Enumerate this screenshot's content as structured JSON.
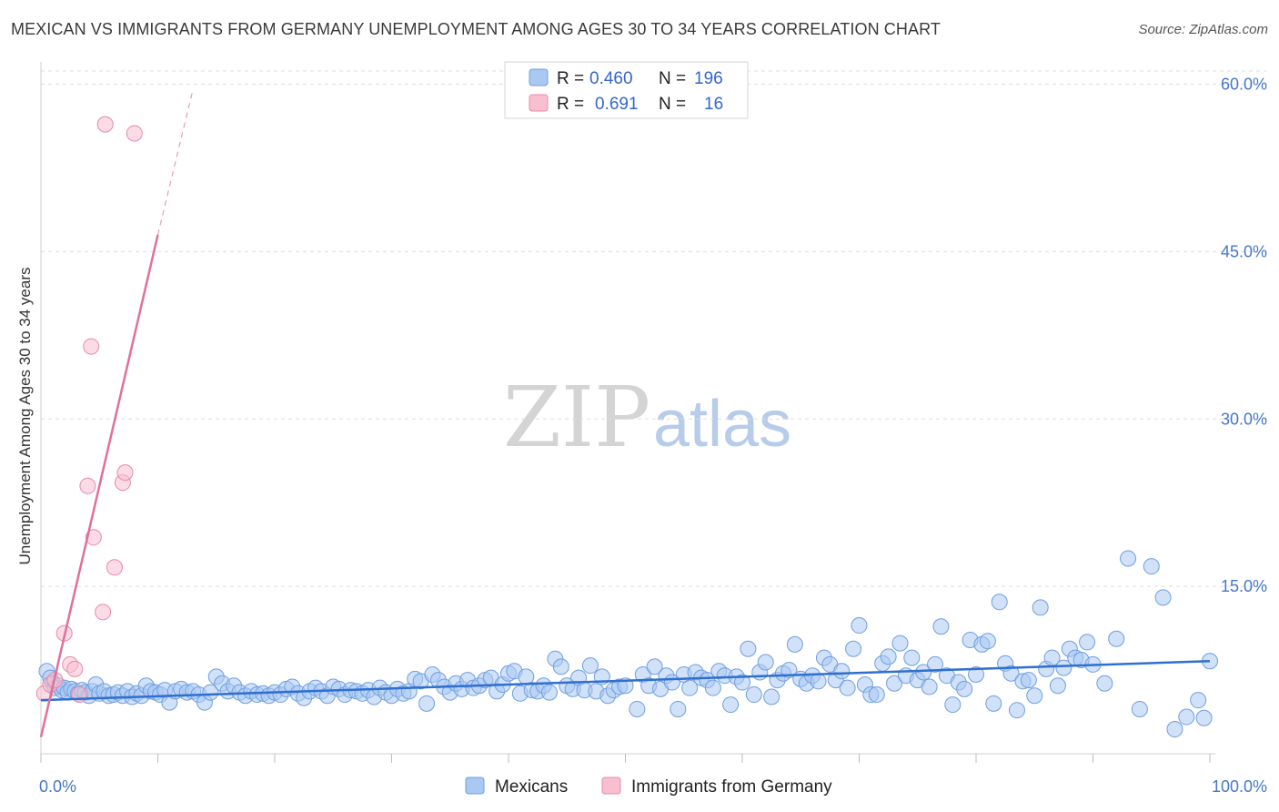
{
  "title": "MEXICAN VS IMMIGRANTS FROM GERMANY UNEMPLOYMENT AMONG AGES 30 TO 34 YEARS CORRELATION CHART",
  "source": "Source: ZipAtlas.com",
  "watermark": {
    "zip": "ZIP",
    "atlas": "atlas"
  },
  "legend": {
    "r_label": "R =",
    "n_label": "N =",
    "rows": [
      {
        "series": "Mexicans",
        "r": "0.460",
        "n": "196",
        "color": "#a9c8f2",
        "stroke": "#6f9fe0"
      },
      {
        "series": "Immigrants from Germany",
        "r": "0.691",
        "n": "16",
        "color": "#f8bfd1",
        "stroke": "#e889a8"
      }
    ]
  },
  "bottom_legend": [
    "Mexicans",
    "Immigrants from Germany"
  ],
  "chart_data": {
    "type": "scatter",
    "title": "MEXICAN VS IMMIGRANTS FROM GERMANY UNEMPLOYMENT AMONG AGES 30 TO 34 YEARS CORRELATION CHART",
    "xlabel": "",
    "ylabel": "Unemployment Among Ages 30 to 34 years",
    "xlim": [
      0,
      100
    ],
    "ylim": [
      0,
      62
    ],
    "x_tick_labels": [
      "0.0%",
      "100.0%"
    ],
    "y_ticks": [
      15,
      30,
      45,
      60
    ],
    "y_tick_labels": [
      "15.0%",
      "30.0%",
      "45.0%",
      "60.0%"
    ],
    "grid": true,
    "series": [
      {
        "name": "Mexicans",
        "color": "#a9c8f2",
        "stroke": "#6f9fe0",
        "trend": {
          "x0": 0,
          "y0": 4.8,
          "x1": 100,
          "y1": 8.3,
          "color": "#2f6fd0"
        },
        "points": [
          [
            0.5,
            7.4
          ],
          [
            0.8,
            6.8
          ],
          [
            1.0,
            6.3
          ],
          [
            1.2,
            5.9
          ],
          [
            1.5,
            6.1
          ],
          [
            1.8,
            5.7
          ],
          [
            2.0,
            5.9
          ],
          [
            2.3,
            5.5
          ],
          [
            2.6,
            5.8
          ],
          [
            2.9,
            5.6
          ],
          [
            3.2,
            5.4
          ],
          [
            3.5,
            5.7
          ],
          [
            3.8,
            5.5
          ],
          [
            4.1,
            5.2
          ],
          [
            4.4,
            5.6
          ],
          [
            4.7,
            6.2
          ],
          [
            5.0,
            5.4
          ],
          [
            5.4,
            5.6
          ],
          [
            5.8,
            5.2
          ],
          [
            6.2,
            5.3
          ],
          [
            6.6,
            5.5
          ],
          [
            7.0,
            5.2
          ],
          [
            7.4,
            5.6
          ],
          [
            7.8,
            5.1
          ],
          [
            8.2,
            5.4
          ],
          [
            8.6,
            5.2
          ],
          [
            9.0,
            6.1
          ],
          [
            9.4,
            5.6
          ],
          [
            9.8,
            5.5
          ],
          [
            10.2,
            5.3
          ],
          [
            10.6,
            5.7
          ],
          [
            11.0,
            4.6
          ],
          [
            11.5,
            5.6
          ],
          [
            12.0,
            5.8
          ],
          [
            12.5,
            5.5
          ],
          [
            13.0,
            5.6
          ],
          [
            13.5,
            5.3
          ],
          [
            14.0,
            4.6
          ],
          [
            14.5,
            5.5
          ],
          [
            15.0,
            6.9
          ],
          [
            15.5,
            6.3
          ],
          [
            16.0,
            5.6
          ],
          [
            16.5,
            6.1
          ],
          [
            17.0,
            5.5
          ],
          [
            17.5,
            5.2
          ],
          [
            18.0,
            5.6
          ],
          [
            18.5,
            5.3
          ],
          [
            19.0,
            5.4
          ],
          [
            19.5,
            5.2
          ],
          [
            20.0,
            5.5
          ],
          [
            20.5,
            5.3
          ],
          [
            21.0,
            5.8
          ],
          [
            21.5,
            6.0
          ],
          [
            22.0,
            5.4
          ],
          [
            22.5,
            5.0
          ],
          [
            23.0,
            5.6
          ],
          [
            23.5,
            5.9
          ],
          [
            24.0,
            5.6
          ],
          [
            24.5,
            5.2
          ],
          [
            25.0,
            6.0
          ],
          [
            25.5,
            5.8
          ],
          [
            26.0,
            5.3
          ],
          [
            26.5,
            5.7
          ],
          [
            27.0,
            5.6
          ],
          [
            27.5,
            5.4
          ],
          [
            28.0,
            5.7
          ],
          [
            28.5,
            5.1
          ],
          [
            29.0,
            5.9
          ],
          [
            29.5,
            5.5
          ],
          [
            30.0,
            5.2
          ],
          [
            30.5,
            5.8
          ],
          [
            31.0,
            5.4
          ],
          [
            31.5,
            5.6
          ],
          [
            32.0,
            6.7
          ],
          [
            32.5,
            6.5
          ],
          [
            33.0,
            4.5
          ],
          [
            33.5,
            7.1
          ],
          [
            34.0,
            6.6
          ],
          [
            34.5,
            6.0
          ],
          [
            35.0,
            5.5
          ],
          [
            35.5,
            6.3
          ],
          [
            36.0,
            5.8
          ],
          [
            36.5,
            6.6
          ],
          [
            37.0,
            5.9
          ],
          [
            37.5,
            6.1
          ],
          [
            38.0,
            6.6
          ],
          [
            38.5,
            6.8
          ],
          [
            39.0,
            5.6
          ],
          [
            39.5,
            6.2
          ],
          [
            40.0,
            7.2
          ],
          [
            40.5,
            7.4
          ],
          [
            41.0,
            5.4
          ],
          [
            41.5,
            6.9
          ],
          [
            42.0,
            5.7
          ],
          [
            42.5,
            5.6
          ],
          [
            43.0,
            6.1
          ],
          [
            43.5,
            5.5
          ],
          [
            44.0,
            8.5
          ],
          [
            44.5,
            7.8
          ],
          [
            45.0,
            6.1
          ],
          [
            45.5,
            5.8
          ],
          [
            46.0,
            6.8
          ],
          [
            46.5,
            5.7
          ],
          [
            47.0,
            7.9
          ],
          [
            47.5,
            5.6
          ],
          [
            48.0,
            6.9
          ],
          [
            48.5,
            5.2
          ],
          [
            49.0,
            5.7
          ],
          [
            49.5,
            6.0
          ],
          [
            50.0,
            6.1
          ],
          [
            51.0,
            4.0
          ],
          [
            51.5,
            7.1
          ],
          [
            52.0,
            6.1
          ],
          [
            52.5,
            7.8
          ],
          [
            53.0,
            5.8
          ],
          [
            53.5,
            7.0
          ],
          [
            54.0,
            6.4
          ],
          [
            54.5,
            4.0
          ],
          [
            55.0,
            7.1
          ],
          [
            55.5,
            5.9
          ],
          [
            56.0,
            7.3
          ],
          [
            56.5,
            6.8
          ],
          [
            57.0,
            6.6
          ],
          [
            57.5,
            5.9
          ],
          [
            58.0,
            7.4
          ],
          [
            58.5,
            7.0
          ],
          [
            59.0,
            4.4
          ],
          [
            59.5,
            6.9
          ],
          [
            60.0,
            6.4
          ],
          [
            60.5,
            9.4
          ],
          [
            61.0,
            5.3
          ],
          [
            61.5,
            7.3
          ],
          [
            62.0,
            8.2
          ],
          [
            62.5,
            5.1
          ],
          [
            63.0,
            6.6
          ],
          [
            63.5,
            7.2
          ],
          [
            64.0,
            7.5
          ],
          [
            64.5,
            9.8
          ],
          [
            65.0,
            6.7
          ],
          [
            65.5,
            6.3
          ],
          [
            66.0,
            7.0
          ],
          [
            66.5,
            6.5
          ],
          [
            67.0,
            8.6
          ],
          [
            67.5,
            8.0
          ],
          [
            68.0,
            6.6
          ],
          [
            68.5,
            7.4
          ],
          [
            69.0,
            5.9
          ],
          [
            69.5,
            9.4
          ],
          [
            70.0,
            11.5
          ],
          [
            70.5,
            6.2
          ],
          [
            71.0,
            5.3
          ],
          [
            71.5,
            5.3
          ],
          [
            72.0,
            8.1
          ],
          [
            72.5,
            8.7
          ],
          [
            73.0,
            6.3
          ],
          [
            73.5,
            9.9
          ],
          [
            74.0,
            7.0
          ],
          [
            74.5,
            8.6
          ],
          [
            75.0,
            6.6
          ],
          [
            75.5,
            7.3
          ],
          [
            76.0,
            6.0
          ],
          [
            76.5,
            8.0
          ],
          [
            77.0,
            11.4
          ],
          [
            77.5,
            7.0
          ],
          [
            78.0,
            4.4
          ],
          [
            78.5,
            6.4
          ],
          [
            79.0,
            5.8
          ],
          [
            79.5,
            10.2
          ],
          [
            80.0,
            7.1
          ],
          [
            80.5,
            9.8
          ],
          [
            81.0,
            10.1
          ],
          [
            81.5,
            4.5
          ],
          [
            82.0,
            13.6
          ],
          [
            82.5,
            8.1
          ],
          [
            83.0,
            7.2
          ],
          [
            83.5,
            3.9
          ],
          [
            84.0,
            6.5
          ],
          [
            84.5,
            6.6
          ],
          [
            85.0,
            5.2
          ],
          [
            85.5,
            13.1
          ],
          [
            86.0,
            7.6
          ],
          [
            86.5,
            8.6
          ],
          [
            87.0,
            6.1
          ],
          [
            87.5,
            7.7
          ],
          [
            88.0,
            9.4
          ],
          [
            88.5,
            8.6
          ],
          [
            89.0,
            8.4
          ],
          [
            89.5,
            10.0
          ],
          [
            90.0,
            8.0
          ],
          [
            91.0,
            6.3
          ],
          [
            92.0,
            10.3
          ],
          [
            93.0,
            17.5
          ],
          [
            94.0,
            4.0
          ],
          [
            95.0,
            16.8
          ],
          [
            96.0,
            14.0
          ],
          [
            97.0,
            2.2
          ],
          [
            98.0,
            3.3
          ],
          [
            99.0,
            4.8
          ],
          [
            99.5,
            3.2
          ],
          [
            100.0,
            8.3
          ]
        ]
      },
      {
        "name": "Immigrants from Germany",
        "color": "#f8bfd1",
        "stroke": "#e889a8",
        "trend": {
          "x0": 0,
          "y0": 1.5,
          "x1": 10,
          "y1": 46.5,
          "color": "#e0709a",
          "dash_to": {
            "x": 13,
            "y": 59.5
          }
        },
        "points": [
          [
            0.3,
            5.4
          ],
          [
            0.8,
            6.2
          ],
          [
            1.2,
            6.6
          ],
          [
            2.0,
            10.8
          ],
          [
            2.5,
            8.0
          ],
          [
            2.9,
            7.6
          ],
          [
            3.3,
            5.3
          ],
          [
            4.0,
            24.0
          ],
          [
            4.3,
            36.5
          ],
          [
            4.5,
            19.4
          ],
          [
            5.3,
            12.7
          ],
          [
            5.5,
            56.4
          ],
          [
            6.3,
            16.7
          ],
          [
            7.0,
            24.3
          ],
          [
            7.2,
            25.2
          ],
          [
            8.0,
            55.6
          ]
        ]
      }
    ]
  }
}
